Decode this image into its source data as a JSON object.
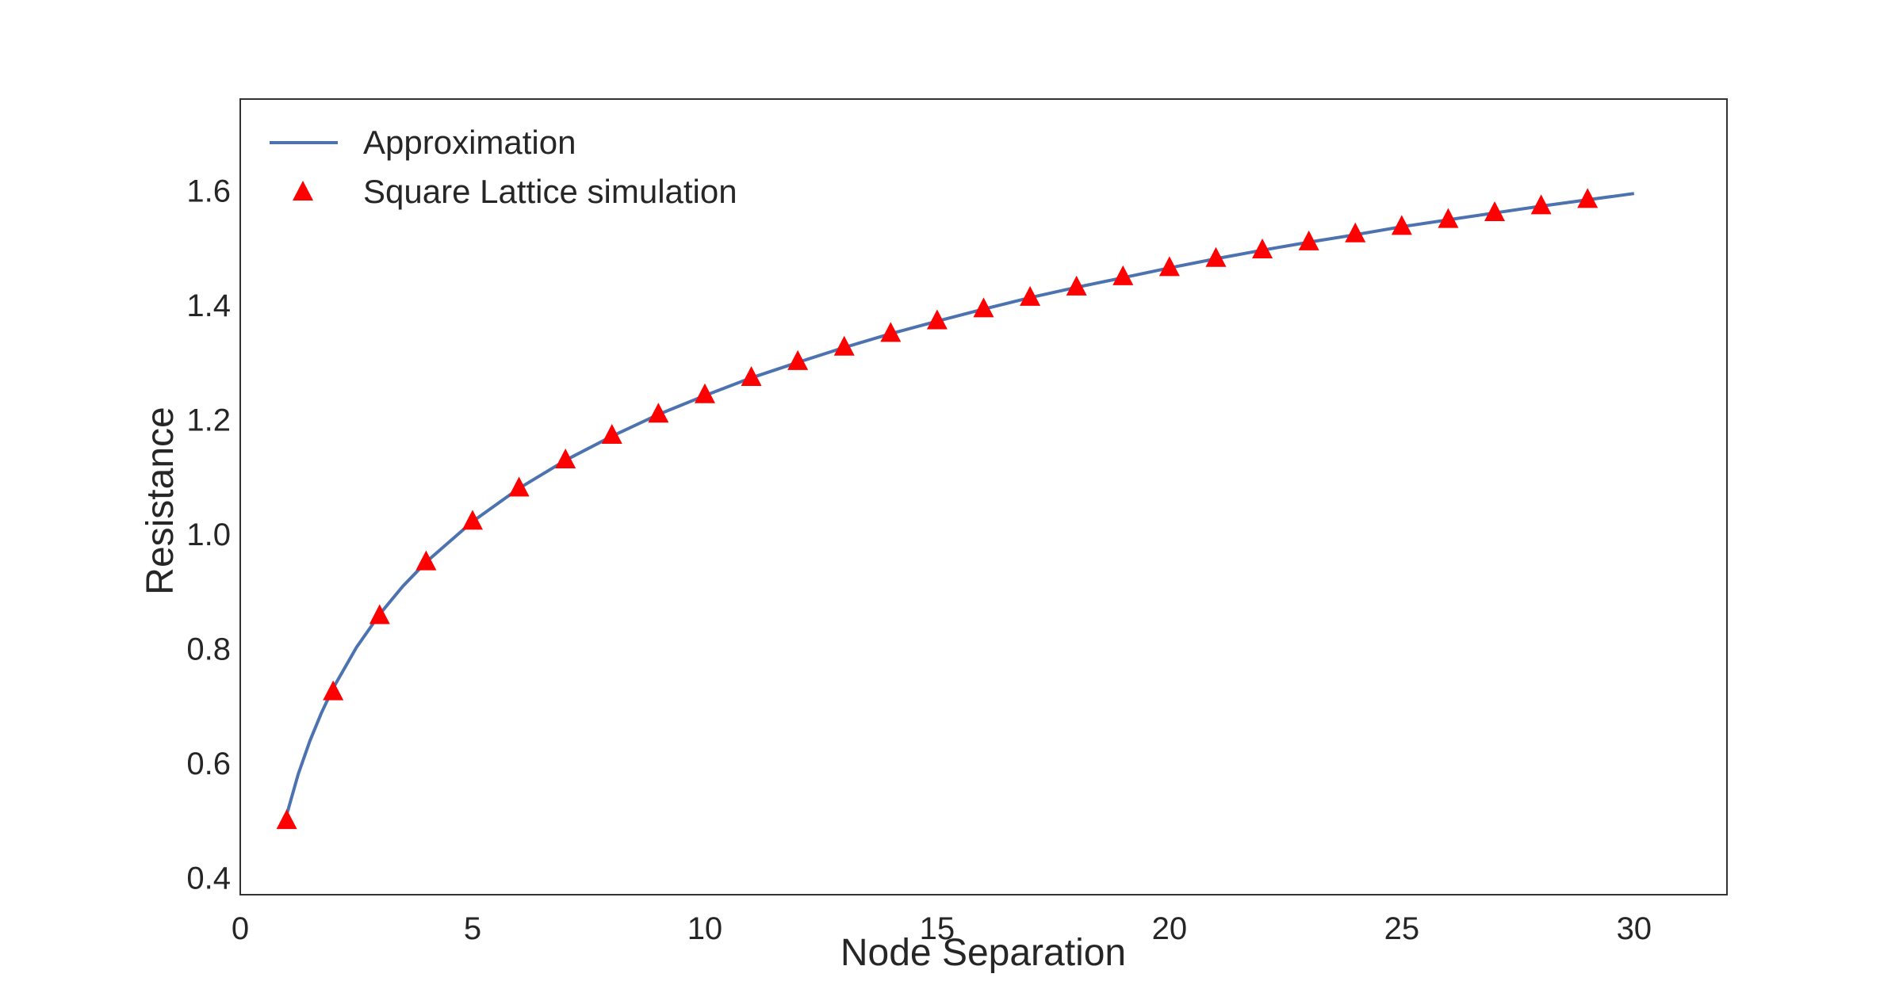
{
  "chart_data": {
    "type": "line",
    "xlabel": "Node Separation",
    "ylabel": "Resistance",
    "xlim": [
      0,
      32
    ],
    "ylim": [
      0.37,
      1.76
    ],
    "xticks": [
      0,
      5,
      10,
      15,
      20,
      25,
      30
    ],
    "yticks": [
      0.4,
      0.6,
      0.8,
      1.0,
      1.2,
      1.4,
      1.6
    ],
    "grid": false,
    "legend_position": "top-left",
    "series": [
      {
        "name": "Approximation",
        "kind": "line",
        "color": "#4c72b0",
        "x": [
          1,
          1.25,
          1.5,
          1.75,
          2,
          2.5,
          3,
          3.5,
          4,
          5,
          6,
          7,
          8,
          9,
          10,
          11,
          12,
          13,
          14,
          15,
          16,
          17,
          18,
          19,
          20,
          21,
          22,
          23,
          24,
          25,
          26,
          27,
          28,
          29,
          30
        ],
        "y": [
          0.51,
          0.581,
          0.639,
          0.688,
          0.731,
          0.802,
          0.86,
          0.909,
          0.951,
          1.022,
          1.08,
          1.129,
          1.171,
          1.209,
          1.242,
          1.273,
          1.3,
          1.326,
          1.35,
          1.372,
          1.393,
          1.413,
          1.431,
          1.448,
          1.465,
          1.481,
          1.496,
          1.51,
          1.523,
          1.537,
          1.549,
          1.561,
          1.573,
          1.584,
          1.595
        ]
      },
      {
        "name": "Square Lattice simulation",
        "kind": "scatter",
        "marker": "triangle",
        "color": "#ff0000",
        "x": [
          1,
          2,
          3,
          4,
          5,
          6,
          7,
          8,
          9,
          10,
          11,
          12,
          13,
          14,
          15,
          16,
          17,
          18,
          19,
          20,
          21,
          22,
          23,
          24,
          25,
          26,
          27,
          28,
          29
        ],
        "y": [
          0.5,
          0.725,
          0.858,
          0.952,
          1.023,
          1.081,
          1.13,
          1.173,
          1.21,
          1.244,
          1.274,
          1.302,
          1.327,
          1.351,
          1.373,
          1.394,
          1.414,
          1.432,
          1.45,
          1.466,
          1.482,
          1.497,
          1.511,
          1.525,
          1.538,
          1.55,
          1.562,
          1.574,
          1.585
        ]
      }
    ]
  }
}
